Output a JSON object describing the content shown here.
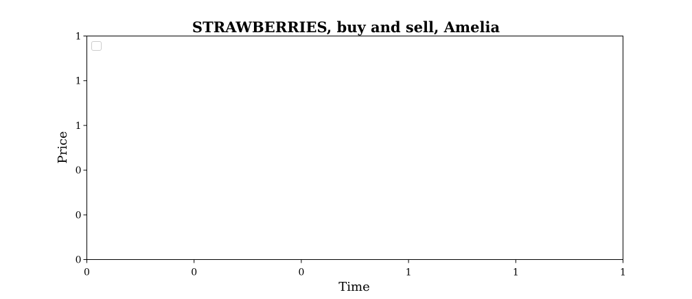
{
  "chart_data": {
    "type": "line",
    "title": "STRAWBERRIES, buy and sell, Amelia",
    "xlabel": "Time",
    "ylabel": "Price",
    "x_tick_labels": [
      "0",
      "0",
      "0",
      "1",
      "1",
      "1"
    ],
    "y_tick_labels": [
      "0",
      "0",
      "0",
      "1",
      "1",
      "1"
    ],
    "series": [],
    "grid": false,
    "legend": "top-left",
    "legend_entries": []
  }
}
